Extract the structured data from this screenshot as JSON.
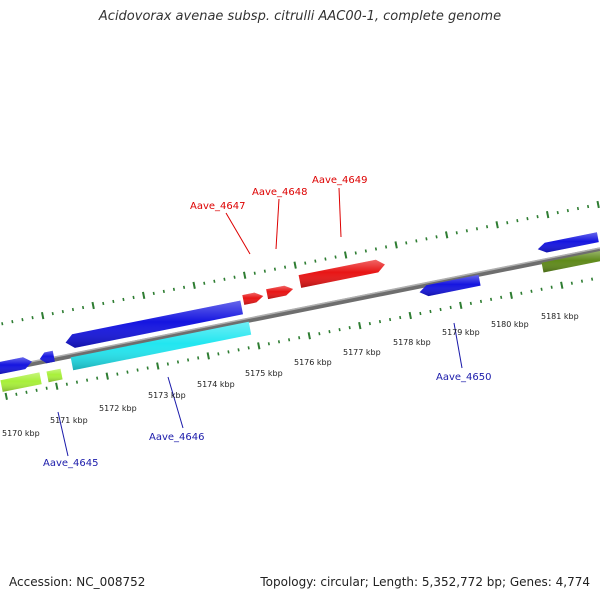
{
  "title": "Acidovorax avenae subsp. citrulli AAC00-1, complete genome",
  "footer": {
    "accession": "Accession: NC_008752",
    "summary": "Topology: circular; Length: 5,352,772 bp; Genes: 4,774"
  },
  "colors": {
    "backbone": "#888888",
    "tick": "#2e7d32",
    "gene_red": "#e81515",
    "gene_blue": "#1515e0",
    "gene_cyan": "#22e6f0",
    "gene_lime": "#a8f03a",
    "gene_olive": "#5f8a1a",
    "label_red": "#dd0000",
    "label_blue": "#1a1aaa"
  },
  "scale_labels": [
    "5170 kbp",
    "5171 kbp",
    "5172 kbp",
    "5173 kbp",
    "5174 kbp",
    "5175 kbp",
    "5176 kbp",
    "5177 kbp",
    "5178 kbp",
    "5179 kbp",
    "5180 kbp",
    "5181 kbp"
  ],
  "gene_labels": [
    {
      "id": "Aave_4645",
      "strand": "minus"
    },
    {
      "id": "Aave_4646",
      "strand": "minus"
    },
    {
      "id": "Aave_4647",
      "strand": "plus"
    },
    {
      "id": "Aave_4648",
      "strand": "plus"
    },
    {
      "id": "Aave_4649",
      "strand": "plus"
    },
    {
      "id": "Aave_4650",
      "strand": "minus"
    }
  ]
}
